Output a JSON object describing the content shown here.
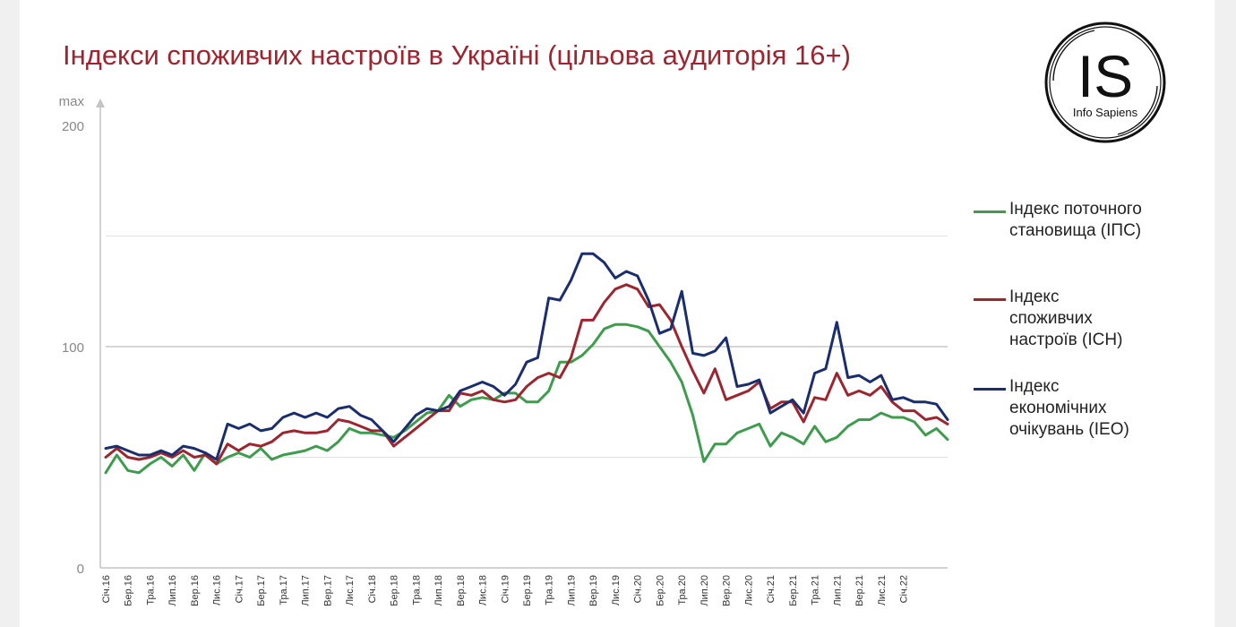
{
  "title": "Індекси споживчих настроїв в Україні (цільова аудиторія 16+)",
  "logo": {
    "letters": "IS",
    "name": "Info Sapiens"
  },
  "chart_data": {
    "type": "line",
    "title": "Індекси споживчих настроїв в Україні (цільова аудиторія 16+)",
    "y_axis": {
      "range": [
        0,
        200
      ],
      "ticks": [
        0,
        100,
        200
      ],
      "max_label": "max",
      "gridlines": [
        50,
        100,
        150
      ]
    },
    "x_tick_labels": [
      "Січ.16",
      "Бер.16",
      "Тра.16",
      "Лип.16",
      "Вер.16",
      "Лис.16",
      "Січ.17",
      "Бер.17",
      "Тра.17",
      "Лип.17",
      "Вер.17",
      "Лис.17",
      "Січ.18",
      "Бер.18",
      "Тра.18",
      "Лип.18",
      "Вер.18",
      "Лис.18",
      "Січ.19",
      "Бер.19",
      "Тра.19",
      "Лип.19",
      "Вер.19",
      "Лис.19",
      "Січ.20",
      "Бер.20",
      "Тра.20",
      "Лип.20",
      "Вер.20",
      "Лис.20",
      "Січ.21",
      "Бер.21",
      "Тра.21",
      "Лип.21",
      "Вер.21",
      "Лис.21",
      "Січ.22"
    ],
    "points_per_tick": 2,
    "legend_position": "right",
    "series": [
      {
        "name": "Індекс поточного становища (ІПС)",
        "color": "#3f9c4e",
        "values": [
          43,
          51,
          44,
          43,
          47,
          50,
          46,
          51,
          44,
          52,
          47,
          50,
          52,
          50,
          54,
          49,
          51,
          52,
          53,
          55,
          53,
          57,
          63,
          61,
          61,
          60,
          59,
          62,
          66,
          70,
          71,
          78,
          73,
          76,
          77,
          76,
          79,
          79,
          75,
          75,
          80,
          93,
          93,
          96,
          101,
          108,
          110,
          110,
          109,
          107,
          100,
          93,
          84,
          69,
          48,
          56,
          56,
          61,
          63,
          65,
          55,
          61,
          59,
          56,
          64,
          57,
          59,
          64,
          67,
          67,
          70,
          68,
          68,
          66,
          60,
          63,
          58
        ]
      },
      {
        "name": "Індекс споживчих настроїв (ІСН)",
        "color": "#9b2630",
        "values": [
          50,
          54,
          50,
          49,
          50,
          52,
          50,
          53,
          50,
          51,
          47,
          56,
          53,
          56,
          55,
          57,
          61,
          62,
          61,
          61,
          62,
          67,
          66,
          64,
          62,
          62,
          55,
          59,
          63,
          67,
          71,
          71,
          79,
          78,
          80,
          76,
          75,
          76,
          82,
          86,
          88,
          86,
          95,
          112,
          112,
          120,
          126,
          128,
          126,
          118,
          119,
          112,
          100,
          89,
          79,
          90,
          76,
          78,
          80,
          84,
          72,
          75,
          75,
          66,
          77,
          76,
          88,
          78,
          80,
          78,
          82,
          75,
          71,
          71,
          67,
          68,
          65
        ]
      },
      {
        "name": "Індекс економічних очікувань (ІЕО)",
        "color": "#1a2e6e",
        "values": [
          54,
          55,
          53,
          51,
          51,
          53,
          51,
          55,
          54,
          52,
          49,
          65,
          63,
          65,
          62,
          63,
          68,
          70,
          68,
          70,
          68,
          72,
          73,
          69,
          67,
          62,
          57,
          63,
          69,
          72,
          71,
          73,
          80,
          82,
          84,
          82,
          78,
          83,
          93,
          95,
          122,
          121,
          130,
          142,
          142,
          138,
          131,
          134,
          132,
          121,
          106,
          108,
          125,
          97,
          96,
          98,
          104,
          82,
          83,
          85,
          70,
          73,
          76,
          70,
          88,
          90,
          111,
          86,
          87,
          84,
          87,
          76,
          77,
          75,
          75,
          74,
          67
        ]
      }
    ]
  },
  "legend": [
    {
      "label_lines": [
        "Індекс поточного",
        "становища (ІПС)"
      ],
      "color": "#3f9c4e"
    },
    {
      "label_lines": [
        "Індекс",
        "споживчих",
        "настроїв (ІСН)"
      ],
      "color": "#9b2630"
    },
    {
      "label_lines": [
        "Індекс",
        "економічних",
        "очікувань (ІЕО)"
      ],
      "color": "#1a2e6e"
    }
  ]
}
